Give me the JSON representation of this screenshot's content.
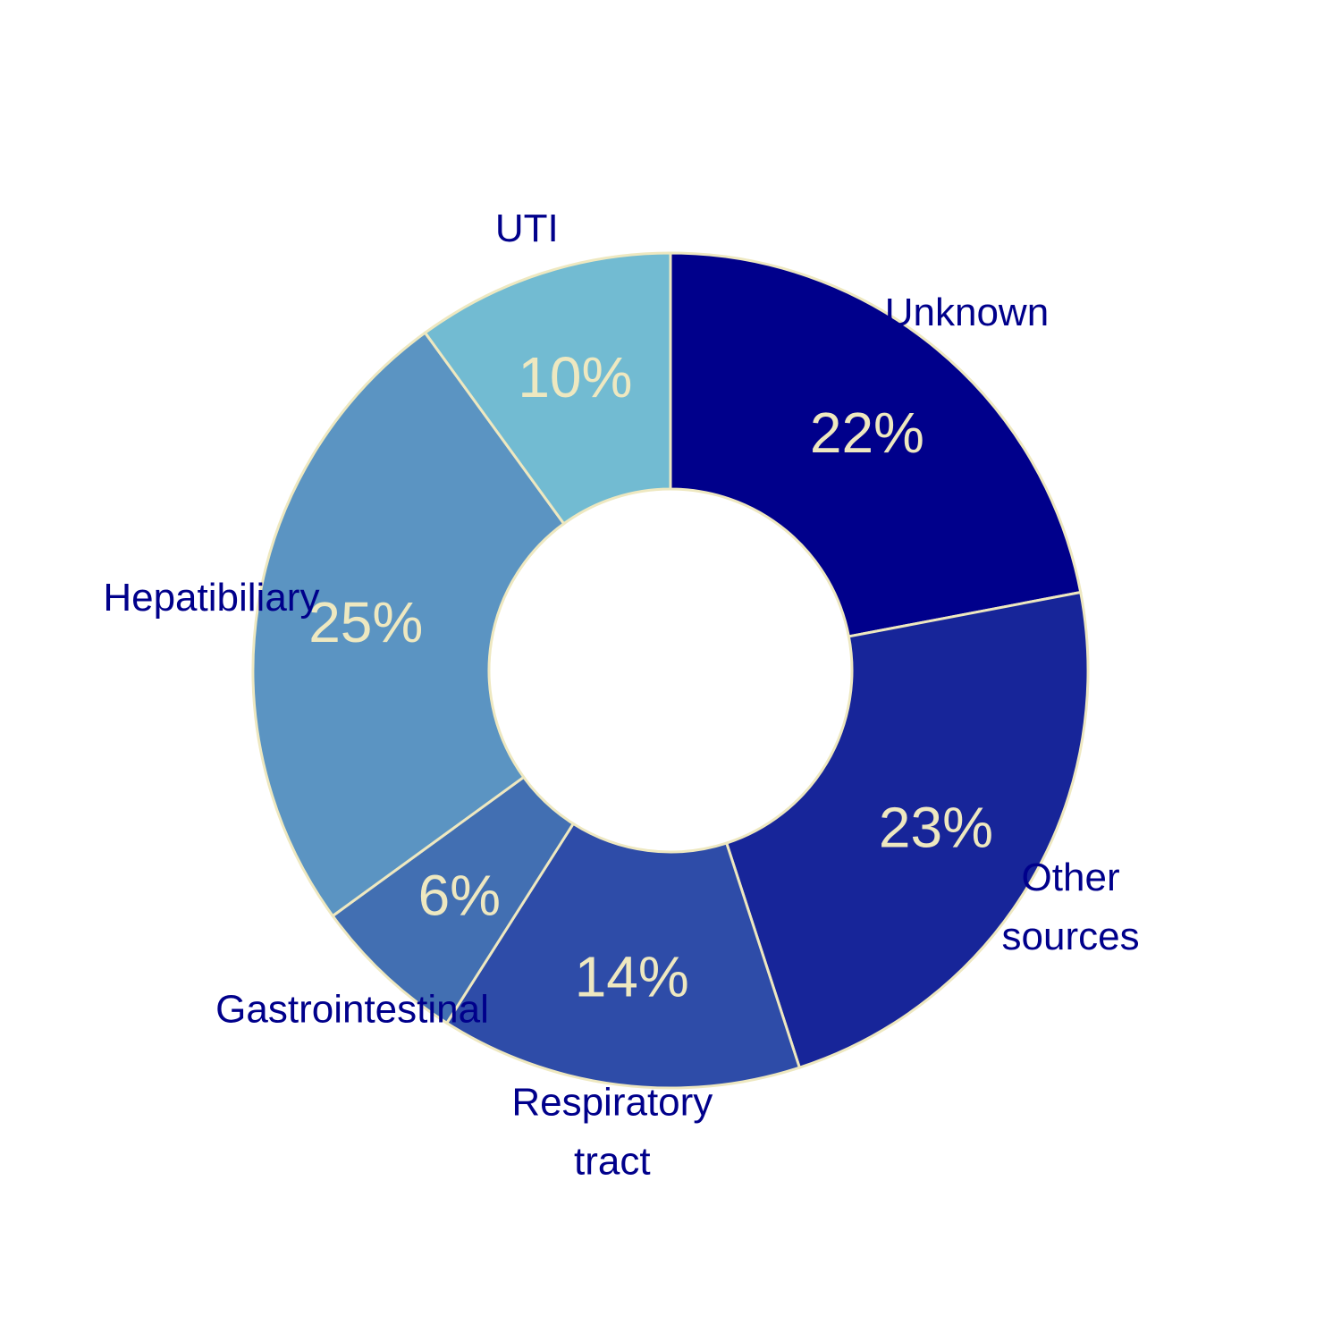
{
  "chart_data": {
    "type": "pie",
    "variant": "donut",
    "start": "12 o'clock, clockwise",
    "slices": [
      {
        "label": [
          "Unknown"
        ],
        "value": 22,
        "value_label": "22%",
        "color": "#00008b"
      },
      {
        "label": [
          "Other",
          "sources"
        ],
        "value": 23,
        "value_label": "23%",
        "color": "#172599"
      },
      {
        "label": [
          "Respiratory",
          "tract"
        ],
        "value": 14,
        "value_label": "14%",
        "color": "#2e4ca8"
      },
      {
        "label": [
          "Gastrointestinal"
        ],
        "value": 6,
        "value_label": "6%",
        "color": "#426fb2"
      },
      {
        "label": [
          "Hepatibiliary"
        ],
        "value": 25,
        "value_label": "25%",
        "color": "#5b94c2"
      },
      {
        "label": [
          "UTI"
        ],
        "value": 10,
        "value_label": "10%",
        "color": "#72bbd2"
      }
    ],
    "border_color": "#eee8c0",
    "category_label_color": "#00008b",
    "value_label_color": "#eee8c0",
    "legend": "none",
    "grid": false
  }
}
